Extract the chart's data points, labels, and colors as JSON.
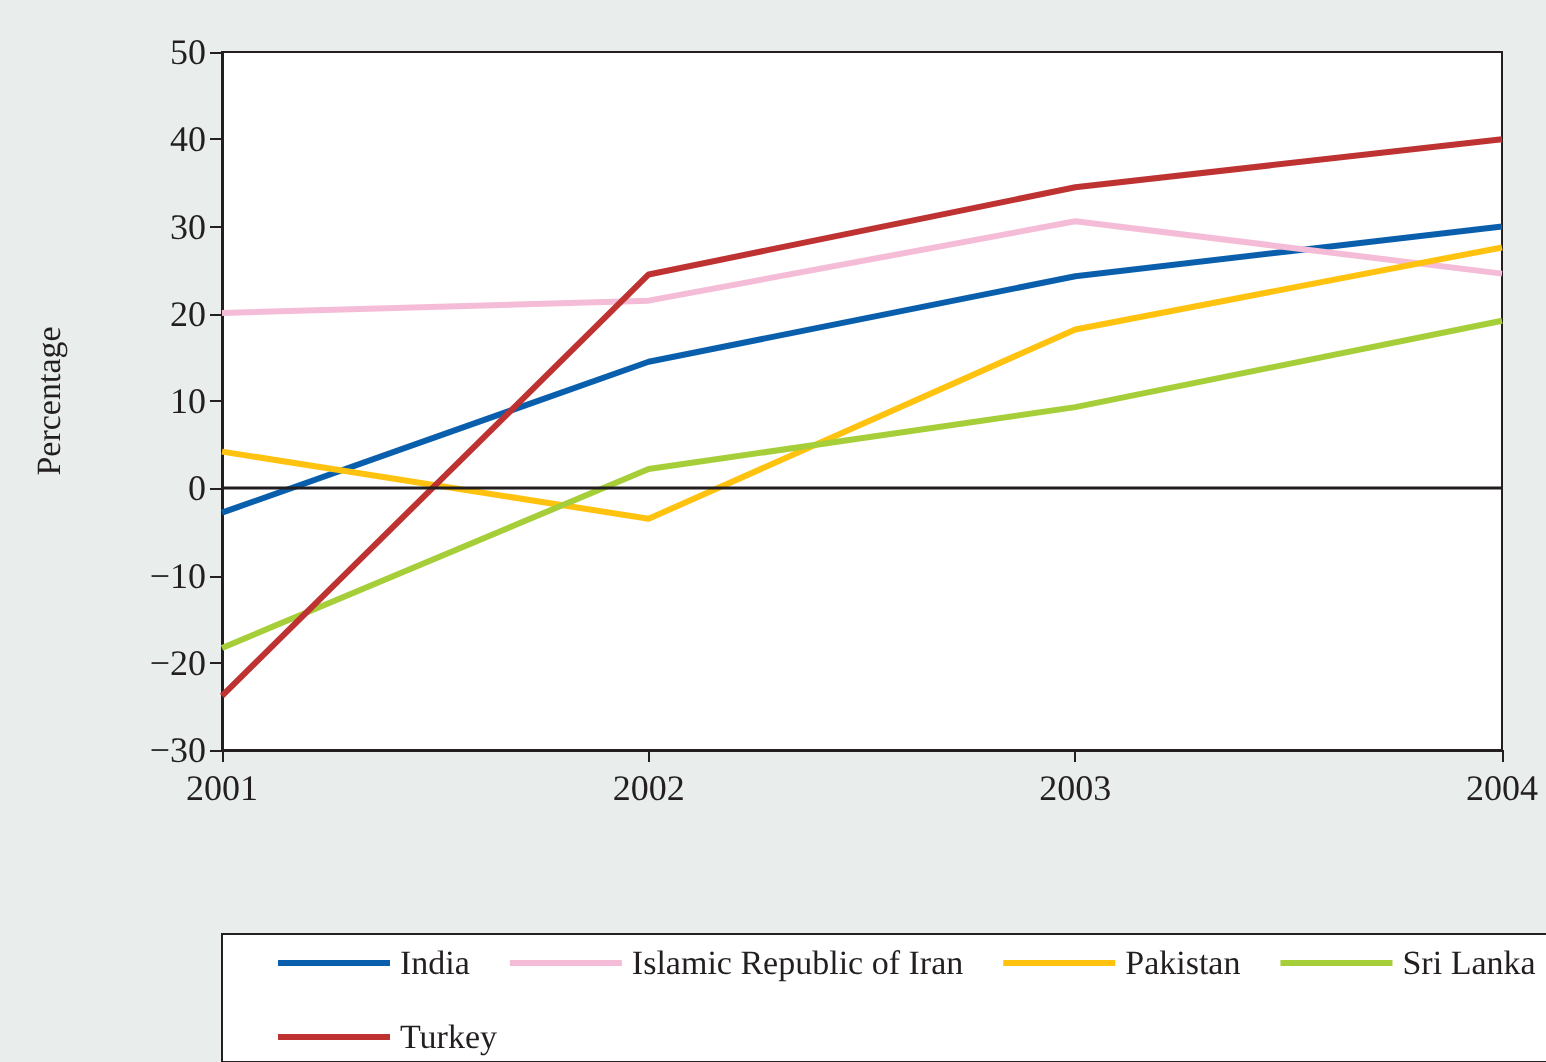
{
  "chart_data": {
    "type": "line",
    "ylabel": "Percentage",
    "x": [
      2001,
      2002,
      2003,
      2004
    ],
    "xlim": [
      2001,
      2004
    ],
    "xticks": [
      2001,
      2002,
      2003,
      2004
    ],
    "ylim": [
      -30,
      50
    ],
    "yticks": [
      {
        "value": -30,
        "label": "−30"
      },
      {
        "value": -20,
        "label": "−20"
      },
      {
        "value": -10,
        "label": "−10"
      },
      0,
      10,
      20,
      30,
      40,
      50
    ],
    "grid": false,
    "legend": "bottom",
    "marker": "none",
    "line_style": "solid",
    "ref_lines": [
      {
        "axis": "y",
        "value": 0,
        "color": "#231f20"
      }
    ],
    "series": [
      {
        "name": "India",
        "color": "#0a5fac",
        "values": [
          -2.8,
          14.5,
          24.3,
          30
        ]
      },
      {
        "name": "Islamic Republic of Iran",
        "color": "#f4bcd6",
        "values": [
          20.1,
          21.5,
          30.6,
          24.6
        ]
      },
      {
        "name": "Pakistan",
        "color": "#ffc20e",
        "values": [
          4.2,
          -3.5,
          18.2,
          27.6
        ]
      },
      {
        "name": "Sri Lanka",
        "color": "#a6ce39",
        "values": [
          -18.3,
          2.2,
          9.3,
          19.2
        ]
      },
      {
        "name": "Turkey",
        "color": "#be3232",
        "values": [
          -23.8,
          24.5,
          34.5,
          40
        ]
      }
    ]
  }
}
